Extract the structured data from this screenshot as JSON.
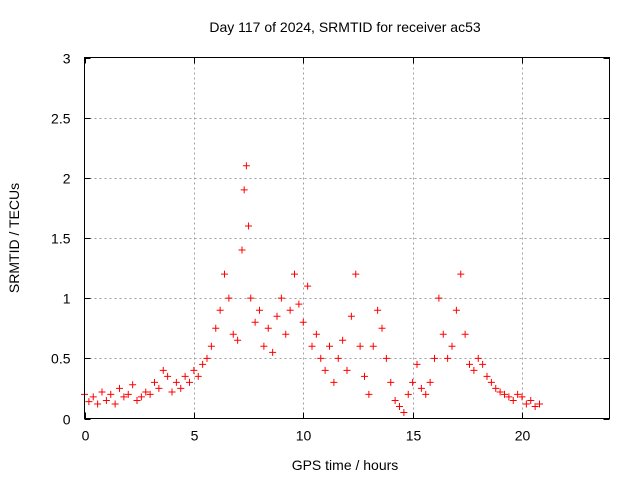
{
  "chart_data": {
    "type": "scatter",
    "title": "Day 117 of 2024, SRMTID for receiver ac53",
    "xlabel": "GPS time / hours",
    "ylabel": "SRMTID / TECUs",
    "xlim": [
      0,
      24
    ],
    "ylim": [
      0,
      3
    ],
    "xticks": [
      0,
      5,
      10,
      15,
      20
    ],
    "xtick_labels": [
      "0",
      "5",
      "10",
      "15",
      "20"
    ],
    "yticks": [
      0,
      0.5,
      1,
      1.5,
      2,
      2.5,
      3
    ],
    "ytick_labels": [
      "0",
      "0.5",
      "1",
      "1.5",
      "2",
      "2.5",
      "3"
    ],
    "grid": true,
    "marker": "+",
    "series": [
      {
        "name": "SRMTID",
        "color": "#ff0000",
        "points": [
          [
            0.0,
            0.2
          ],
          [
            0.2,
            0.14
          ],
          [
            0.4,
            0.18
          ],
          [
            0.6,
            0.12
          ],
          [
            0.8,
            0.22
          ],
          [
            1.0,
            0.15
          ],
          [
            1.2,
            0.2
          ],
          [
            1.4,
            0.12
          ],
          [
            1.6,
            0.25
          ],
          [
            1.8,
            0.18
          ],
          [
            2.0,
            0.2
          ],
          [
            2.2,
            0.28
          ],
          [
            2.4,
            0.15
          ],
          [
            2.6,
            0.18
          ],
          [
            2.8,
            0.22
          ],
          [
            3.0,
            0.2
          ],
          [
            3.2,
            0.3
          ],
          [
            3.4,
            0.25
          ],
          [
            3.6,
            0.4
          ],
          [
            3.8,
            0.35
          ],
          [
            4.0,
            0.22
          ],
          [
            4.2,
            0.3
          ],
          [
            4.4,
            0.25
          ],
          [
            4.6,
            0.35
          ],
          [
            4.8,
            0.3
          ],
          [
            5.0,
            0.4
          ],
          [
            5.2,
            0.35
          ],
          [
            5.4,
            0.45
          ],
          [
            5.6,
            0.5
          ],
          [
            5.8,
            0.6
          ],
          [
            6.0,
            0.75
          ],
          [
            6.2,
            0.9
          ],
          [
            6.4,
            1.2
          ],
          [
            6.6,
            1.0
          ],
          [
            6.8,
            0.7
          ],
          [
            7.0,
            0.65
          ],
          [
            7.2,
            1.4
          ],
          [
            7.3,
            1.9
          ],
          [
            7.4,
            2.1
          ],
          [
            7.5,
            1.6
          ],
          [
            7.6,
            1.0
          ],
          [
            7.8,
            0.8
          ],
          [
            8.0,
            0.9
          ],
          [
            8.2,
            0.6
          ],
          [
            8.4,
            0.75
          ],
          [
            8.6,
            0.55
          ],
          [
            8.8,
            0.85
          ],
          [
            9.0,
            1.0
          ],
          [
            9.2,
            0.7
          ],
          [
            9.4,
            0.9
          ],
          [
            9.6,
            1.2
          ],
          [
            9.8,
            0.95
          ],
          [
            10.0,
            0.8
          ],
          [
            10.2,
            1.1
          ],
          [
            10.4,
            0.6
          ],
          [
            10.6,
            0.7
          ],
          [
            10.8,
            0.5
          ],
          [
            11.0,
            0.4
          ],
          [
            11.2,
            0.6
          ],
          [
            11.4,
            0.3
          ],
          [
            11.6,
            0.5
          ],
          [
            11.8,
            0.65
          ],
          [
            12.0,
            0.4
          ],
          [
            12.2,
            0.85
          ],
          [
            12.4,
            1.2
          ],
          [
            12.6,
            0.6
          ],
          [
            12.8,
            0.35
          ],
          [
            13.0,
            0.2
          ],
          [
            13.2,
            0.6
          ],
          [
            13.4,
            0.9
          ],
          [
            13.6,
            0.75
          ],
          [
            13.8,
            0.5
          ],
          [
            14.0,
            0.3
          ],
          [
            14.2,
            0.15
          ],
          [
            14.4,
            0.1
          ],
          [
            14.6,
            0.05
          ],
          [
            14.8,
            0.2
          ],
          [
            15.0,
            0.3
          ],
          [
            15.2,
            0.45
          ],
          [
            15.4,
            0.25
          ],
          [
            15.6,
            0.2
          ],
          [
            15.8,
            0.3
          ],
          [
            16.0,
            0.5
          ],
          [
            16.2,
            1.0
          ],
          [
            16.4,
            0.7
          ],
          [
            16.6,
            0.5
          ],
          [
            16.8,
            0.6
          ],
          [
            17.0,
            0.9
          ],
          [
            17.2,
            1.2
          ],
          [
            17.4,
            0.7
          ],
          [
            17.6,
            0.45
          ],
          [
            17.8,
            0.4
          ],
          [
            18.0,
            0.5
          ],
          [
            18.2,
            0.45
          ],
          [
            18.4,
            0.35
          ],
          [
            18.6,
            0.3
          ],
          [
            18.8,
            0.25
          ],
          [
            19.0,
            0.22
          ],
          [
            19.2,
            0.2
          ],
          [
            19.4,
            0.18
          ],
          [
            19.6,
            0.15
          ],
          [
            19.8,
            0.2
          ],
          [
            20.0,
            0.18
          ],
          [
            20.2,
            0.12
          ],
          [
            20.4,
            0.15
          ],
          [
            20.6,
            0.1
          ],
          [
            20.8,
            0.12
          ]
        ]
      }
    ]
  }
}
